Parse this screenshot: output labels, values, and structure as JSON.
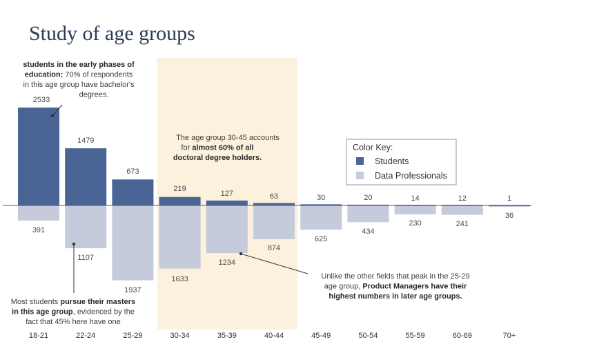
{
  "chart_data": {
    "type": "bar",
    "title": "Study of age groups",
    "categories": [
      "18-21",
      "22-24",
      "25-29",
      "30-34",
      "35-39",
      "40-44",
      "45-49",
      "50-54",
      "55-59",
      "60-69",
      "70+"
    ],
    "series": [
      {
        "name": "Students",
        "values": [
          2533,
          1479,
          673,
          219,
          127,
          63,
          30,
          20,
          14,
          12,
          1
        ],
        "color": "#4a6496",
        "direction": "up"
      },
      {
        "name": "Data Professionals",
        "values": [
          391,
          1107,
          1937,
          1633,
          1234,
          874,
          625,
          434,
          230,
          241,
          36
        ],
        "color": "#c5cbda",
        "direction": "down"
      }
    ],
    "legend": {
      "title": "Color Key:",
      "position": "top-right"
    },
    "highlight": {
      "from": "30-34",
      "to": "40-44",
      "color": "#fbf1dd"
    },
    "annotations": [
      {
        "id": "a1",
        "parts": [
          {
            "line": [
              {
                "t": "students in the early phases of",
                "b": true
              }
            ]
          },
          {
            "line": [
              {
                "t": "education:",
                "b": true
              },
              {
                "t": " 70%  of  respondents",
                "b": false
              }
            ]
          },
          {
            "line": [
              {
                "t": "in this age group  have bachelor's",
                "b": false
              }
            ]
          },
          {
            "line": [
              {
                "t": "degrees.",
                "b": false
              }
            ]
          }
        ]
      },
      {
        "id": "a2",
        "parts": [
          {
            "line": [
              {
                "t": "The age group 30-45 accounts",
                "b": false
              }
            ]
          },
          {
            "line": [
              {
                "t": "for ",
                "b": false
              },
              {
                "t": "almost  60%  of all",
                "b": true
              }
            ]
          },
          {
            "line": [
              {
                "t": "doctoral degree holders.",
                "b": true
              }
            ]
          }
        ]
      },
      {
        "id": "a3",
        "parts": [
          {
            "line": [
              {
                "t": "Unlike the other fields that peak in the 25-29",
                "b": false
              }
            ]
          },
          {
            "line": [
              {
                "t": "age group, ",
                "b": false
              },
              {
                "t": "Product Managers  have their",
                "b": true
              }
            ]
          },
          {
            "line": [
              {
                "t": "highest  numbers  in  later  age  groups.",
                "b": true
              }
            ]
          }
        ]
      },
      {
        "id": "a4",
        "parts": [
          {
            "line": [
              {
                "t": "Most students ",
                "b": false
              },
              {
                "t": "pursue their masters",
                "b": true
              }
            ]
          },
          {
            "line": [
              {
                "t": "in this age group",
                "b": true
              },
              {
                "t": ", evidenced by the",
                "b": false
              }
            ]
          },
          {
            "line": [
              {
                "t": "fact that 45% here have one",
                "b": false
              }
            ]
          }
        ]
      }
    ]
  }
}
